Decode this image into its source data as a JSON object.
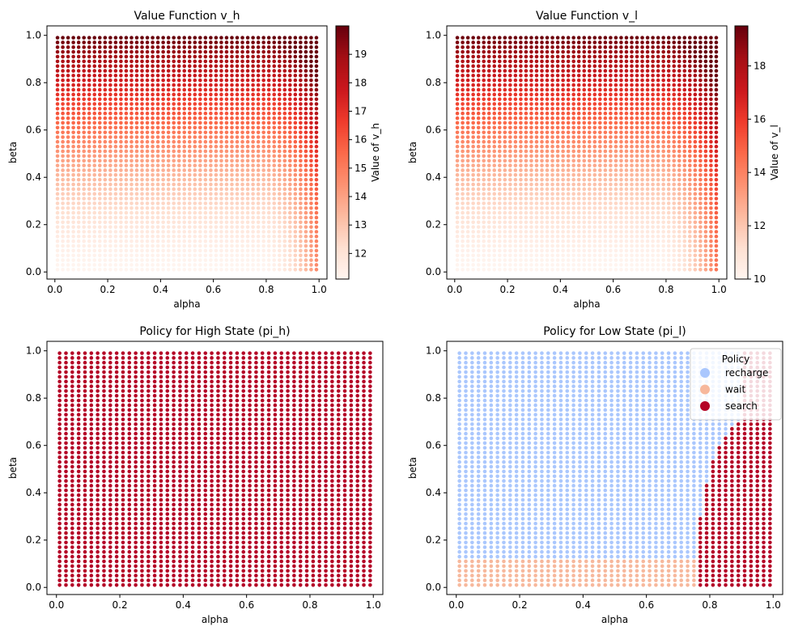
{
  "chart_data": [
    {
      "type": "scatter",
      "title": "Value Function v_h",
      "xlabel": "alpha",
      "ylabel": "beta",
      "xlim": [
        -0.03,
        1.03
      ],
      "ylim": [
        -0.03,
        1.04
      ],
      "xticks": [
        0.0,
        0.2,
        0.4,
        0.6,
        0.8,
        1.0
      ],
      "xtick_labels": [
        "0.0",
        "0.2",
        "0.4",
        "0.6",
        "0.8",
        "1.0"
      ],
      "yticks": [
        0.0,
        0.2,
        0.4,
        0.6,
        0.8,
        1.0
      ],
      "ytick_labels": [
        "0.0",
        "0.2",
        "0.4",
        "0.6",
        "0.8",
        "1.0"
      ],
      "grid": {
        "start": 0.01,
        "end": 0.99,
        "count": 50
      },
      "colormap": "Reds",
      "colorbar": {
        "label": "Value of v_h",
        "vmin": 11.1,
        "vmax": 20.0,
        "ticks": [
          12,
          13,
          14,
          15,
          16,
          17,
          18,
          19
        ],
        "tick_labels": [
          "12",
          "13",
          "14",
          "15",
          "16",
          "17",
          "18",
          "19"
        ]
      },
      "value_model": {
        "base": 11.1,
        "beta_coef": 9.0,
        "alpha_start": 0.78,
        "alpha_coef": 2.0
      }
    },
    {
      "type": "scatter",
      "title": "Value Function v_l",
      "xlabel": "alpha",
      "ylabel": "beta",
      "xlim": [
        -0.03,
        1.03
      ],
      "ylim": [
        -0.03,
        1.04
      ],
      "xticks": [
        0.0,
        0.2,
        0.4,
        0.6,
        0.8,
        1.0
      ],
      "xtick_labels": [
        "0.0",
        "0.2",
        "0.4",
        "0.6",
        "0.8",
        "1.0"
      ],
      "yticks": [
        0.0,
        0.2,
        0.4,
        0.6,
        0.8,
        1.0
      ],
      "ytick_labels": [
        "0.0",
        "0.2",
        "0.4",
        "0.6",
        "0.8",
        "1.0"
      ],
      "grid": {
        "start": 0.01,
        "end": 0.99,
        "count": 50
      },
      "colormap": "Reds",
      "colorbar": {
        "label": "Value of v_l",
        "vmin": 10.0,
        "vmax": 19.5,
        "ticks": [
          10,
          12,
          14,
          16,
          18
        ],
        "tick_labels": [
          "10",
          "12",
          "14",
          "16",
          "18"
        ]
      },
      "value_model": {
        "base": 10.0,
        "beta_coef": 9.5,
        "alpha_start": 0.76,
        "alpha_coef": 2.1
      }
    },
    {
      "type": "scatter",
      "title": "Policy for High State (pi_h)",
      "xlabel": "alpha",
      "ylabel": "beta",
      "xlim": [
        -0.03,
        1.03
      ],
      "ylim": [
        -0.03,
        1.04
      ],
      "xticks": [
        0.0,
        0.2,
        0.4,
        0.6,
        0.8,
        1.0
      ],
      "xtick_labels": [
        "0.0",
        "0.2",
        "0.4",
        "0.6",
        "0.8",
        "1.0"
      ],
      "yticks": [
        0.0,
        0.2,
        0.4,
        0.6,
        0.8,
        1.0
      ],
      "ytick_labels": [
        "0.0",
        "0.2",
        "0.4",
        "0.6",
        "0.8",
        "1.0"
      ],
      "grid": {
        "start": 0.01,
        "end": 0.99,
        "count": 50
      },
      "policy": "all-search"
    },
    {
      "type": "scatter",
      "title": "Policy for Low State (pi_l)",
      "xlabel": "alpha",
      "ylabel": "beta",
      "xlim": [
        -0.03,
        1.03
      ],
      "ylim": [
        -0.03,
        1.04
      ],
      "xticks": [
        0.0,
        0.2,
        0.4,
        0.6,
        0.8,
        1.0
      ],
      "xtick_labels": [
        "0.0",
        "0.2",
        "0.4",
        "0.6",
        "0.8",
        "1.0"
      ],
      "yticks": [
        0.0,
        0.2,
        0.4,
        0.6,
        0.8,
        1.0
      ],
      "ytick_labels": [
        "0.0",
        "0.2",
        "0.4",
        "0.6",
        "0.8",
        "1.0"
      ],
      "grid": {
        "start": 0.01,
        "end": 0.99,
        "count": 50
      },
      "policy": "low-state",
      "policy_rule": {
        "search_boundary": [
          [
            0.77,
            0.29
          ],
          [
            0.79,
            0.43
          ],
          [
            0.81,
            0.53
          ],
          [
            0.83,
            0.59
          ],
          [
            0.85,
            0.63
          ],
          [
            0.87,
            0.67
          ],
          [
            0.89,
            0.69
          ]
        ],
        "wait_beta_max": 0.11
      },
      "legend": {
        "title": "Policy",
        "position": "top-right",
        "entries": [
          {
            "label": "recharge",
            "color": "#aac7fd"
          },
          {
            "label": "wait",
            "color": "#f7b89c"
          },
          {
            "label": "search",
            "color": "#b40426"
          }
        ]
      }
    }
  ]
}
